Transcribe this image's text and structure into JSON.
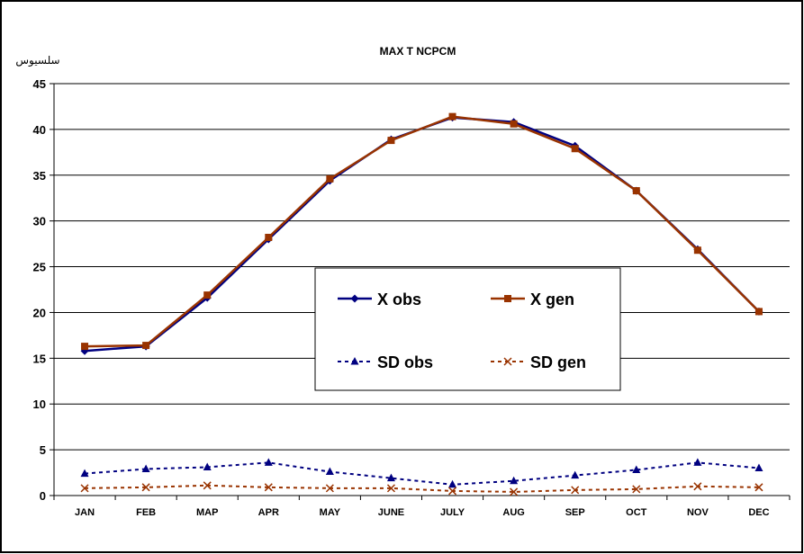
{
  "chart_data": {
    "type": "line",
    "title": "MAX T NCPCM",
    "ylabel": "سلسيوس",
    "xlabel": "",
    "categories": [
      "JAN",
      "FEB",
      "MAP",
      "APR",
      "MAY",
      "JUNE",
      "JULY",
      "AUG",
      "SEP",
      "OCT",
      "NOV",
      "DEC"
    ],
    "yticks": [
      "0",
      "5",
      "10",
      "15",
      "20",
      "25",
      "30",
      "35",
      "40",
      "45"
    ],
    "ylim": [
      0,
      45
    ],
    "grid": "horizontal",
    "legend_position": "center",
    "series": [
      {
        "name": "X obs",
        "style": "solid",
        "marker": "diamond",
        "color": "#000080",
        "values": [
          15.8,
          16.3,
          21.6,
          28.0,
          34.4,
          38.9,
          41.3,
          40.8,
          38.2,
          33.3,
          26.9,
          20.1
        ]
      },
      {
        "name": "X gen",
        "style": "solid",
        "marker": "square",
        "color": "#993300",
        "values": [
          16.3,
          16.4,
          21.9,
          28.2,
          34.6,
          38.8,
          41.4,
          40.6,
          37.9,
          33.3,
          26.8,
          20.1
        ]
      },
      {
        "name": "SD obs",
        "style": "dashed",
        "marker": "triangle",
        "color": "#000080",
        "values": [
          2.4,
          2.9,
          3.1,
          3.6,
          2.6,
          1.9,
          1.2,
          1.6,
          2.2,
          2.8,
          3.6,
          3.0
        ]
      },
      {
        "name": "SD gen",
        "style": "dashed",
        "marker": "x",
        "color": "#993300",
        "values": [
          0.8,
          0.9,
          1.1,
          0.9,
          0.8,
          0.8,
          0.5,
          0.4,
          0.6,
          0.7,
          1.0,
          0.9
        ]
      }
    ]
  }
}
